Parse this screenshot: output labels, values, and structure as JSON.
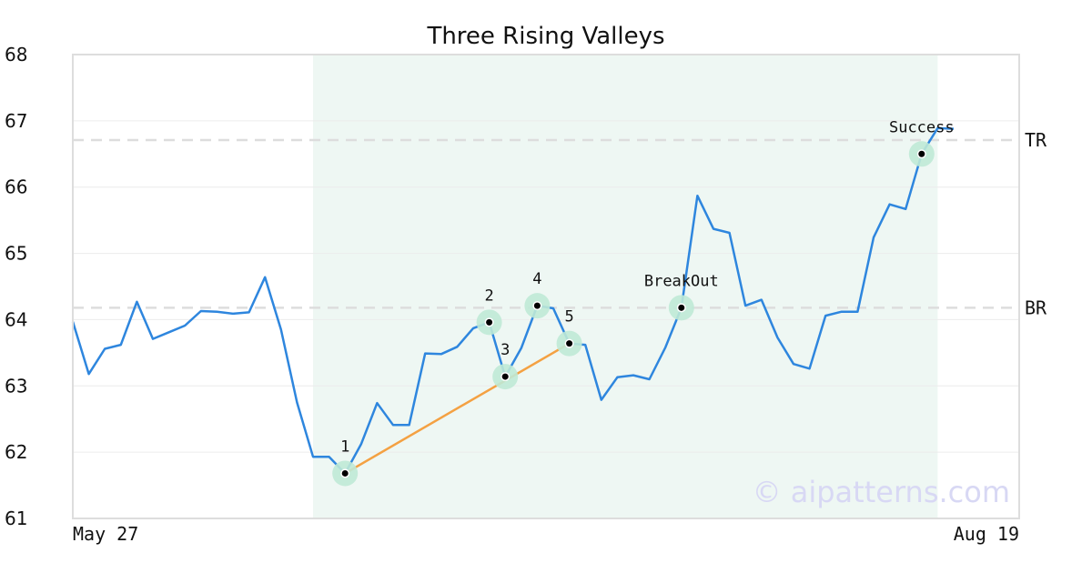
{
  "chart_data": {
    "type": "line",
    "title": "Three Rising Valleys",
    "xlabel": "",
    "ylabel": "",
    "ylim": [
      61,
      68
    ],
    "yticks": [
      61,
      62,
      63,
      64,
      65,
      66,
      67,
      68
    ],
    "x_tick_labels": [
      "May 27",
      "Aug 19"
    ],
    "grid": true,
    "series": [
      {
        "color": "#2e86de",
        "values": [
          63.97,
          63.18,
          63.56,
          63.62,
          64.27,
          63.71,
          63.81,
          63.91,
          64.13,
          64.12,
          64.09,
          64.11,
          64.64,
          63.85,
          62.75,
          61.93,
          61.93,
          61.68,
          62.12,
          62.74,
          62.41,
          62.41,
          63.49,
          63.48,
          63.59,
          63.87,
          63.96,
          63.14,
          63.57,
          64.21,
          64.17,
          63.64,
          63.62,
          62.79,
          63.13,
          63.16,
          63.1,
          63.58,
          64.18,
          65.87,
          65.37,
          65.31,
          64.21,
          64.3,
          63.73,
          63.33,
          63.26,
          64.06,
          64.12,
          64.12,
          65.24,
          65.74,
          65.67,
          66.5,
          66.89,
          66.88
        ]
      }
    ],
    "highlight_range": [
      15,
      54
    ],
    "reference_lines": [
      {
        "label": "TR",
        "y": 66.71
      },
      {
        "label": "BR",
        "y": 64.18
      }
    ],
    "pattern_points": [
      {
        "label": "1",
        "index": 17,
        "y": 61.68
      },
      {
        "label": "2",
        "index": 26,
        "y": 63.96
      },
      {
        "label": "3",
        "index": 27,
        "y": 63.14
      },
      {
        "label": "4",
        "index": 29,
        "y": 64.21
      },
      {
        "label": "5",
        "index": 31,
        "y": 63.64
      },
      {
        "label": "BreakOut",
        "index": 38,
        "y": 64.18
      },
      {
        "label": "Success",
        "index": 53,
        "y": 66.5
      }
    ],
    "trend_line": {
      "from_index": 17,
      "to_index": 31
    },
    "colors": {
      "line": "#2e86de",
      "trend": "#f4a142",
      "highlight": "#eef7f3",
      "marker_halo": "#bfe9d6",
      "reference": "#dddddd"
    }
  },
  "watermark": "© aipatterns.com"
}
